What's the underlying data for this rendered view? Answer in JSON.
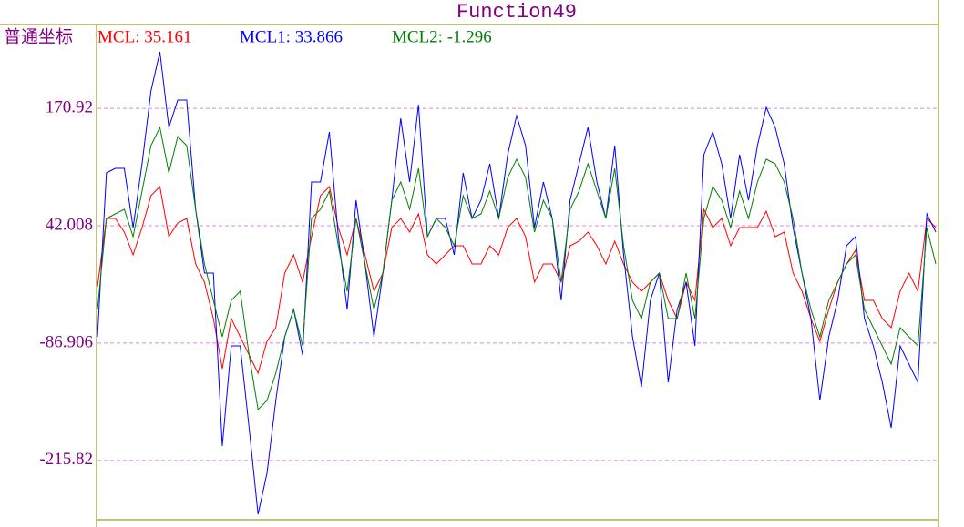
{
  "chart_data": {
    "type": "line",
    "title": "Function49",
    "axis_mode": "普通坐标",
    "ylim": [
      -281,
      263
    ],
    "yticks": [
      170.92,
      42.008,
      -86.906,
      -215.82
    ],
    "grid": true,
    "series": [
      {
        "name": "MCL: 35.161",
        "color": "#ff0000",
        "values": [
          -25,
          50,
          50,
          35,
          10,
          40,
          75,
          85,
          30,
          45,
          50,
          0,
          -20,
          -60,
          -115,
          -60,
          -80,
          -100,
          -120,
          -85,
          -70,
          -10,
          10,
          -20,
          30,
          75,
          85,
          40,
          10,
          50,
          10,
          -30,
          -10,
          40,
          50,
          35,
          55,
          10,
          0,
          10,
          20,
          20,
          0,
          0,
          20,
          10,
          40,
          50,
          30,
          -20,
          0,
          0,
          -20,
          20,
          25,
          35,
          20,
          0,
          25,
          0,
          -20,
          -30,
          -20,
          -10,
          -40,
          -60,
          -20,
          -40,
          60,
          40,
          50,
          20,
          40,
          40,
          40,
          58,
          30,
          35,
          -10,
          -30,
          -60,
          -85,
          -50,
          -20,
          0,
          15,
          -40,
          -40,
          -60,
          -70,
          -30,
          -10,
          -30,
          50,
          40
        ]
      },
      {
        "name": "MCL1: 33.866",
        "color": "#0000ff",
        "values": [
          -80,
          100,
          105,
          105,
          40,
          110,
          190,
          233,
          150,
          180,
          180,
          60,
          -10,
          -10,
          -200,
          -90,
          -90,
          -180,
          -275,
          -230,
          -150,
          -80,
          -50,
          -100,
          90,
          90,
          145,
          30,
          -50,
          70,
          0,
          -80,
          -10,
          70,
          160,
          90,
          175,
          30,
          50,
          50,
          10,
          100,
          50,
          70,
          110,
          50,
          120,
          163,
          130,
          40,
          90,
          50,
          -40,
          70,
          110,
          150,
          90,
          50,
          130,
          10,
          -80,
          -135,
          -40,
          -10,
          -130,
          -50,
          -20,
          -90,
          120,
          145,
          110,
          50,
          120,
          70,
          130,
          172,
          150,
          110,
          40,
          -10,
          -60,
          -150,
          -80,
          -40,
          20,
          30,
          -60,
          -90,
          -130,
          -180,
          -90,
          -110,
          -130,
          55,
          35
        ]
      },
      {
        "name": "MCL2: -1.296",
        "color": "#008000",
        "values": [
          -50,
          50,
          55,
          60,
          30,
          80,
          130,
          150,
          100,
          140,
          130,
          60,
          0,
          -40,
          -80,
          -40,
          -30,
          -100,
          -160,
          -150,
          -120,
          -80,
          -50,
          -90,
          50,
          60,
          80,
          20,
          -30,
          50,
          0,
          -50,
          -10,
          70,
          90,
          60,
          105,
          30,
          50,
          40,
          20,
          75,
          50,
          55,
          80,
          50,
          95,
          115,
          95,
          35,
          70,
          50,
          -20,
          60,
          80,
          110,
          80,
          50,
          105,
          20,
          -40,
          -60,
          -20,
          -10,
          -60,
          -60,
          -10,
          -60,
          50,
          85,
          70,
          40,
          80,
          50,
          90,
          115,
          110,
          90,
          50,
          -10,
          -50,
          -80,
          -40,
          -20,
          0,
          10,
          -50,
          -70,
          -90,
          -110,
          -70,
          -80,
          -90,
          40,
          0
        ]
      }
    ]
  }
}
